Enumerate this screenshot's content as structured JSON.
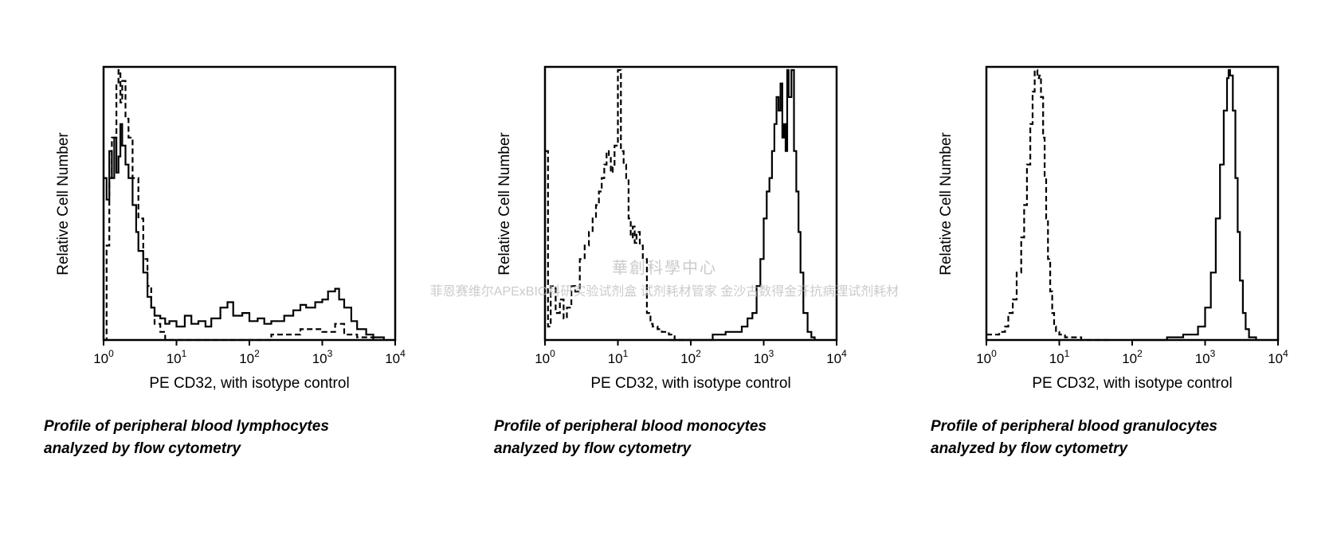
{
  "chart_data": [
    {
      "type": "line",
      "xlabel": "PE CD32, with isotype control",
      "ylabel": "Relative Cell Number",
      "x_scale": "log",
      "xlim": [
        1,
        10000
      ],
      "ylim": [
        0,
        1
      ],
      "ticks": [
        {
          "base": "10",
          "exp": "0",
          "value": 1
        },
        {
          "base": "10",
          "exp": "1",
          "value": 10
        },
        {
          "base": "10",
          "exp": "2",
          "value": 100
        },
        {
          "base": "10",
          "exp": "3",
          "value": 1000
        },
        {
          "base": "10",
          "exp": "4",
          "value": 10000
        }
      ],
      "caption": [
        "Profile of peripheral blood lymphocytes",
        "analyzed by flow cytometry"
      ],
      "series": [
        {
          "style": "solid",
          "x": [
            1,
            1.1,
            1.2,
            1.3,
            1.4,
            1.5,
            1.6,
            1.7,
            1.8,
            2,
            2.2,
            2.5,
            2.8,
            3,
            3.5,
            4,
            4.5,
            5,
            6,
            7,
            8,
            10,
            13,
            16,
            20,
            25,
            30,
            40,
            50,
            60,
            80,
            100,
            130,
            160,
            200,
            300,
            400,
            500,
            600,
            800,
            1000,
            1200,
            1500,
            1700,
            2000,
            2500,
            3000,
            4000,
            5000,
            7000
          ],
          "y": [
            0.6,
            0.52,
            0.7,
            0.6,
            0.75,
            0.62,
            0.68,
            0.8,
            0.72,
            0.65,
            0.6,
            0.5,
            0.4,
            0.33,
            0.25,
            0.16,
            0.12,
            0.09,
            0.08,
            0.06,
            0.07,
            0.05,
            0.09,
            0.06,
            0.07,
            0.05,
            0.08,
            0.12,
            0.14,
            0.09,
            0.1,
            0.07,
            0.08,
            0.06,
            0.07,
            0.09,
            0.11,
            0.13,
            0.12,
            0.14,
            0.15,
            0.18,
            0.19,
            0.15,
            0.12,
            0.07,
            0.04,
            0.02,
            0.01,
            0.0
          ]
        },
        {
          "style": "dashed",
          "x": [
            1,
            1.1,
            1.2,
            1.3,
            1.5,
            1.6,
            1.7,
            1.8,
            2,
            2.2,
            2.5,
            3,
            3.5,
            4,
            4.5,
            5,
            6,
            7,
            8,
            10,
            15,
            20,
            50,
            100,
            200,
            500,
            1000,
            1500,
            2000,
            3000,
            5000
          ],
          "y": [
            0.0,
            0.35,
            0.6,
            0.75,
            0.95,
            1.0,
            0.88,
            0.96,
            0.82,
            0.75,
            0.6,
            0.45,
            0.3,
            0.2,
            0.12,
            0.06,
            0.03,
            0.0,
            0.0,
            0.0,
            0.0,
            0.0,
            0.0,
            0.0,
            0.02,
            0.04,
            0.03,
            0.06,
            0.02,
            0.01,
            0.0
          ]
        }
      ]
    },
    {
      "type": "line",
      "xlabel": "PE CD32, with isotype control",
      "ylabel": "Relative Cell Number",
      "x_scale": "log",
      "xlim": [
        1,
        10000
      ],
      "ylim": [
        0,
        1
      ],
      "ticks": [
        {
          "base": "10",
          "exp": "0",
          "value": 1
        },
        {
          "base": "10",
          "exp": "1",
          "value": 10
        },
        {
          "base": "10",
          "exp": "2",
          "value": 100
        },
        {
          "base": "10",
          "exp": "3",
          "value": 1000
        },
        {
          "base": "10",
          "exp": "4",
          "value": 10000
        }
      ],
      "caption": [
        "Profile of peripheral blood monocytes",
        "analyzed by flow cytometry"
      ],
      "series": [
        {
          "style": "dashed",
          "x": [
            1,
            1.1,
            1.2,
            1.4,
            1.6,
            1.8,
            2,
            2.3,
            2.6,
            3,
            3.5,
            4,
            4.5,
            5,
            5.5,
            6,
            6.5,
            7,
            7.5,
            8,
            8.5,
            9,
            10,
            11,
            12,
            13,
            14,
            15,
            16,
            17,
            18,
            20,
            22,
            25,
            28,
            30,
            35,
            40,
            50,
            60,
            80,
            100
          ],
          "y": [
            0.7,
            0.05,
            0.2,
            0.1,
            0.15,
            0.08,
            0.12,
            0.2,
            0.18,
            0.3,
            0.35,
            0.4,
            0.45,
            0.5,
            0.55,
            0.6,
            0.65,
            0.7,
            0.68,
            0.62,
            0.64,
            0.72,
            1.0,
            0.7,
            0.65,
            0.6,
            0.45,
            0.38,
            0.42,
            0.36,
            0.4,
            0.35,
            0.3,
            0.1,
            0.06,
            0.05,
            0.04,
            0.03,
            0.02,
            0.0,
            0.0,
            0.0
          ]
        },
        {
          "style": "solid",
          "x": [
            50,
            80,
            100,
            200,
            300,
            500,
            600,
            700,
            800,
            900,
            1000,
            1100,
            1200,
            1300,
            1400,
            1500,
            1600,
            1700,
            1800,
            1900,
            2000,
            2100,
            2200,
            2400,
            2600,
            2800,
            3000,
            3200,
            3500,
            4000,
            4500,
            5000
          ],
          "y": [
            0.0,
            0.0,
            0.0,
            0.02,
            0.03,
            0.05,
            0.08,
            0.1,
            0.2,
            0.3,
            0.45,
            0.55,
            0.6,
            0.7,
            0.8,
            0.9,
            0.85,
            0.95,
            0.75,
            0.8,
            0.7,
            1.0,
            0.9,
            1.0,
            0.7,
            0.55,
            0.4,
            0.25,
            0.1,
            0.03,
            0.01,
            0.0
          ]
        }
      ]
    },
    {
      "type": "line",
      "xlabel": "PE CD32, with isotype control",
      "ylabel": "Relative Cell Number",
      "x_scale": "log",
      "xlim": [
        1,
        10000
      ],
      "ylim": [
        0,
        1
      ],
      "ticks": [
        {
          "base": "10",
          "exp": "0",
          "value": 1
        },
        {
          "base": "10",
          "exp": "1",
          "value": 10
        },
        {
          "base": "10",
          "exp": "2",
          "value": 100
        },
        {
          "base": "10",
          "exp": "3",
          "value": 1000
        },
        {
          "base": "10",
          "exp": "4",
          "value": 10000
        }
      ],
      "caption": [
        "Profile of peripheral blood granulocytes",
        "analyzed by flow cytometry"
      ],
      "series": [
        {
          "style": "dashed",
          "x": [
            1,
            1.5,
            1.8,
            2,
            2.3,
            2.6,
            3,
            3.3,
            3.6,
            4,
            4.3,
            4.6,
            5,
            5.3,
            5.6,
            6,
            6.3,
            6.6,
            7,
            7.5,
            8,
            8.5,
            9,
            10,
            12,
            15,
            20,
            30,
            50
          ],
          "y": [
            0.02,
            0.03,
            0.05,
            0.1,
            0.15,
            0.25,
            0.38,
            0.5,
            0.65,
            0.8,
            0.92,
            1.0,
            0.97,
            0.98,
            0.9,
            0.75,
            0.6,
            0.45,
            0.3,
            0.18,
            0.1,
            0.05,
            0.03,
            0.02,
            0.01,
            0.01,
            0.0,
            0.0,
            0.0
          ]
        },
        {
          "style": "solid",
          "x": [
            100,
            300,
            500,
            800,
            1000,
            1200,
            1400,
            1600,
            1800,
            2000,
            2100,
            2200,
            2400,
            2600,
            2800,
            3000,
            3300,
            3600,
            4000,
            5000
          ],
          "y": [
            0.0,
            0.01,
            0.02,
            0.05,
            0.12,
            0.25,
            0.45,
            0.65,
            0.85,
            0.97,
            1.0,
            0.98,
            0.85,
            0.6,
            0.4,
            0.22,
            0.1,
            0.04,
            0.01,
            0.0
          ]
        }
      ]
    }
  ],
  "watermark": {
    "line1": "華創科學中心",
    "line2": "菲恩赛维尔APExBIO科研实验试剂盒  试剂耗材管家  金沙古数得金开抗病理试剂耗材"
  },
  "colors": {
    "line": "#000000",
    "background": "#ffffff",
    "watermark": "#b9b9b9"
  }
}
